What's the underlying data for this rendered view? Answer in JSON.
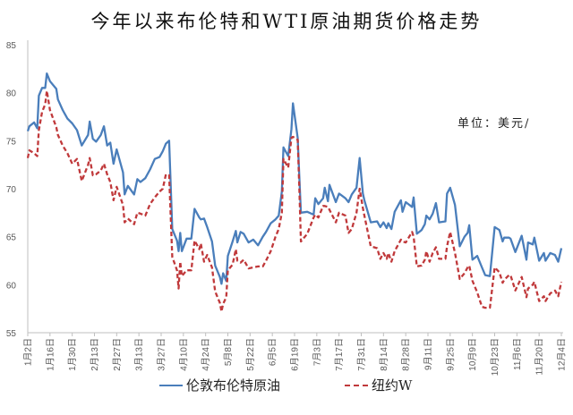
{
  "chart_data": {
    "type": "line",
    "title": "今年以来布伦特和WTI原油期货价格走势",
    "unit_label": "单位：美元/",
    "ylim": [
      55,
      85
    ],
    "yticks": [
      55,
      60,
      65,
      70,
      75,
      80,
      85
    ],
    "grid": false,
    "legend_position": "bottom",
    "xticks": [
      "1月2日",
      "1月16日",
      "1月30日",
      "2月13日",
      "2月27日",
      "3月13日",
      "3月27日",
      "4月10日",
      "4月24日",
      "5月8日",
      "5月22日",
      "6月5日",
      "6月19日",
      "7月3日",
      "7月17日",
      "7月31日",
      "8月14日",
      "8月28日",
      "9月11日",
      "9月25日",
      "10月9日",
      "10月23日",
      "11月6日",
      "11月20日",
      "12月4日"
    ],
    "x": [
      "1/2",
      "1/3",
      "1/6",
      "1/8",
      "1/9",
      "1/11",
      "1/13",
      "1/14",
      "1/16",
      "1/20",
      "1/21",
      "1/24",
      "1/27",
      "1/30",
      "2/2",
      "2/5",
      "2/9",
      "2/10",
      "2/12",
      "2/14",
      "2/17",
      "2/19",
      "2/21",
      "2/23",
      "2/25",
      "2/27",
      "3/3",
      "3/4",
      "3/6",
      "3/10",
      "3/12",
      "3/14",
      "3/17",
      "3/20",
      "3/23",
      "3/26",
      "3/28",
      "3/30",
      "4/1",
      "4/3",
      "4/6",
      "4/7",
      "4/8",
      "4/9",
      "4/12",
      "4/15",
      "4/17",
      "4/20",
      "4/21",
      "4/23",
      "4/25",
      "4/28",
      "4/30",
      "5/3",
      "5/4",
      "5/5",
      "5/7",
      "5/8",
      "5/11",
      "5/13",
      "5/14",
      "5/16",
      "5/18",
      "5/21",
      "5/24",
      "5/27",
      "5/30",
      "6/1",
      "6/4",
      "6/7",
      "6/9",
      "6/11",
      "6/12",
      "6/15",
      "6/17",
      "6/18",
      "6/21",
      "6/22",
      "6/23",
      "6/27",
      "7/1",
      "7/2",
      "7/4",
      "7/7",
      "7/8",
      "7/10",
      "7/11",
      "7/15",
      "7/17",
      "7/21",
      "7/23",
      "7/25",
      "7/28",
      "7/30",
      "8/1",
      "8/2",
      "8/6",
      "8/10",
      "8/12",
      "8/14",
      "8/16",
      "8/17",
      "8/19",
      "8/21",
      "8/25",
      "8/26",
      "8/28",
      "9/1",
      "9/2",
      "9/4",
      "9/7",
      "9/9",
      "9/10",
      "9/12",
      "9/14",
      "9/16",
      "9/18",
      "9/22",
      "9/23",
      "9/25",
      "9/28",
      "10/1",
      "10/4",
      "10/6",
      "10/7",
      "10/9",
      "10/12",
      "10/15",
      "10/17",
      "10/20",
      "10/23",
      "10/26",
      "10/28",
      "10/29",
      "11/1",
      "11/2",
      "11/5",
      "11/9",
      "11/12",
      "11/13",
      "11/16",
      "11/17",
      "11/20",
      "11/23",
      "11/24",
      "11/27",
      "11/30",
      "12/2",
      "12/4"
    ],
    "series": [
      {
        "name": "伦敦布伦特原油",
        "color": "#4a7ebb",
        "style": "solid",
        "values": [
          76.0,
          76.5,
          76.9,
          76.3,
          79.7,
          80.5,
          80.5,
          82.0,
          81.2,
          80.4,
          79.3,
          78.2,
          77.3,
          76.8,
          76.1,
          74.5,
          75.6,
          77.0,
          75.2,
          74.9,
          75.6,
          76.5,
          74.5,
          74.8,
          72.6,
          74.1,
          71.7,
          69.4,
          70.3,
          69.4,
          71.0,
          70.7,
          71.1,
          72.0,
          73.1,
          73.3,
          73.9,
          74.7,
          75.0,
          65.8,
          64.6,
          63.5,
          65.4,
          63.5,
          64.8,
          64.8,
          67.9,
          67.0,
          66.8,
          66.9,
          66.0,
          64.5,
          62.0,
          60.8,
          60.1,
          61.2,
          60.4,
          63.0,
          64.5,
          65.6,
          64.4,
          65.5,
          65.3,
          64.4,
          64.7,
          64.1,
          65.0,
          65.5,
          66.4,
          66.8,
          67.2,
          69.7,
          74.3,
          73.4,
          76.2,
          78.9,
          75.3,
          71.3,
          67.5,
          67.6,
          67.3,
          69.0,
          68.4,
          69.0,
          70.1,
          68.7,
          70.4,
          68.6,
          69.5,
          69.0,
          68.6,
          69.4,
          70.1,
          73.2,
          69.5,
          68.8,
          66.5,
          66.6,
          66.0,
          66.5,
          65.9,
          66.4,
          65.8,
          67.6,
          68.8,
          67.6,
          68.6,
          68.1,
          69.1,
          65.3,
          65.7,
          66.3,
          67.2,
          66.8,
          67.4,
          68.5,
          66.5,
          66.6,
          69.5,
          70.1,
          68.3,
          64.0,
          65.0,
          65.4,
          66.2,
          62.6,
          63.0,
          61.8,
          61.0,
          60.9,
          66.0,
          65.7,
          64.5,
          64.9,
          64.9,
          64.8,
          63.4,
          65.1,
          62.6,
          64.4,
          64.2,
          64.9,
          62.5,
          63.3,
          62.5,
          63.3,
          63.1,
          62.4,
          63.8
        ]
      },
      {
        "name": "纽约W",
        "color": "#c0393b",
        "style": "dashed",
        "values": [
          73.2,
          74.0,
          73.7,
          73.4,
          76.1,
          78.0,
          78.8,
          80.2,
          78.2,
          76.4,
          75.6,
          74.5,
          73.7,
          72.6,
          73.1,
          70.8,
          72.5,
          73.2,
          71.4,
          71.5,
          71.9,
          72.6,
          71.5,
          70.7,
          68.8,
          70.2,
          68.3,
          66.5,
          66.9,
          66.3,
          67.5,
          67.4,
          67.2,
          68.4,
          69.1,
          69.7,
          70.0,
          71.5,
          71.4,
          62.9,
          61.5,
          59.6,
          62.4,
          60.9,
          61.5,
          61.5,
          64.6,
          63.7,
          64.3,
          62.4,
          63.1,
          61.8,
          59.3,
          58.1,
          57.2,
          58.0,
          58.7,
          61.5,
          62.1,
          63.7,
          62.5,
          62.3,
          62.6,
          61.7,
          61.8,
          61.9,
          61.9,
          62.5,
          63.5,
          65.0,
          65.8,
          67.5,
          73.1,
          72.2,
          75.3,
          75.4,
          75.1,
          70.1,
          64.5,
          65.3,
          67.0,
          67.3,
          67.0,
          68.2,
          68.2,
          68.1,
          67.8,
          66.5,
          67.5,
          67.2,
          65.4,
          65.8,
          67.5,
          70.0,
          68.0,
          67.2,
          64.0,
          63.8,
          62.7,
          63.3,
          62.7,
          63.3,
          62.4,
          63.5,
          64.7,
          64.5,
          64.4,
          65.5,
          65.0,
          61.9,
          62.0,
          62.6,
          63.5,
          62.4,
          63.3,
          63.9,
          62.7,
          62.7,
          64.0,
          65.5,
          63.3,
          60.6,
          61.2,
          61.8,
          62.0,
          60.4,
          59.2,
          57.7,
          57.6,
          57.6,
          61.8,
          61.3,
          60.2,
          60.5,
          61.0,
          61.0,
          59.4,
          60.8,
          58.7,
          59.6,
          60.0,
          60.3,
          58.3,
          58.8,
          58.3,
          59.1,
          59.4,
          58.8,
          60.3
        ]
      }
    ]
  }
}
